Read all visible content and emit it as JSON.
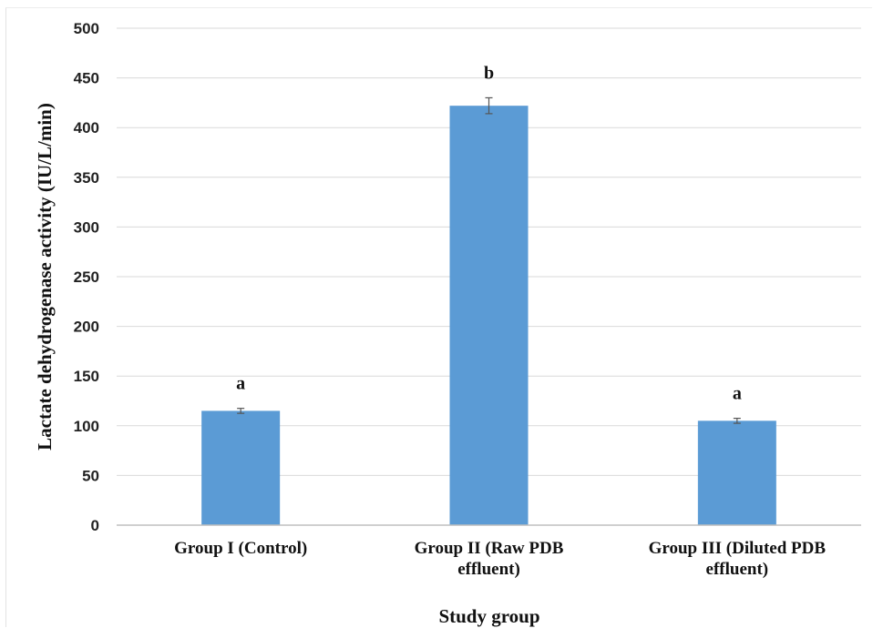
{
  "chart_data": {
    "type": "bar",
    "title": "",
    "xlabel": "Study group",
    "ylabel": "Lactate dehydrogenase activity (IU/L/min)",
    "ylim": [
      0,
      500
    ],
    "yticks": [
      0,
      50,
      100,
      150,
      200,
      250,
      300,
      350,
      400,
      450,
      500
    ],
    "grid": true,
    "categories": [
      [
        "Group I (Control)"
      ],
      [
        "Group II (Raw PDB",
        "effluent)"
      ],
      [
        "Group III (Diluted PDB",
        "effluent)"
      ]
    ],
    "values": [
      115,
      422,
      105
    ],
    "errors": [
      2.5,
      8,
      2.5
    ],
    "significance_labels": [
      "a",
      "b",
      "a"
    ],
    "bar_color": "#5b9bd5"
  }
}
